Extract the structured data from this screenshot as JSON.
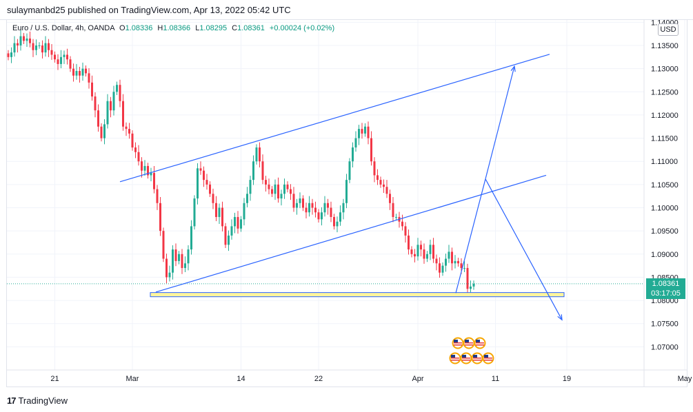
{
  "header": {
    "publish_text": "sulaymanbd25 published on TradingView.com, Apr 13, 2022 05:42 UTC"
  },
  "legend": {
    "symbol": "Euro / U.S. Dollar, 4h, OANDA",
    "o_label": "O",
    "o_value": "1.08336",
    "h_label": "H",
    "h_value": "1.08366",
    "l_label": "L",
    "l_value": "1.08295",
    "c_label": "C",
    "c_value": "1.08361",
    "change": "+0.00024 (+0.02%)"
  },
  "currency_badge": "USD",
  "price_tag": {
    "price": "1.08361",
    "countdown": "03:17:05"
  },
  "footer": {
    "logo_text": "TradingView"
  },
  "colors": {
    "up": "#22ab94",
    "down": "#f23645",
    "trendline": "#2962ff",
    "zone_fill": "#fff59d",
    "zone_stroke": "#2962ff"
  },
  "chart_data": {
    "type": "candlestick",
    "ylim": [
      1.065,
      1.1405
    ],
    "y_ticks": [
      "1.07000",
      "1.07500",
      "1.08000",
      "1.08500",
      "1.09000",
      "1.09500",
      "1.10000",
      "1.10500",
      "1.11000",
      "1.11500",
      "1.12000",
      "1.12500",
      "1.13000",
      "1.13500",
      "1.14000"
    ],
    "y_tick_values": [
      1.07,
      1.075,
      1.08,
      1.085,
      1.09,
      1.095,
      1.1,
      1.105,
      1.11,
      1.115,
      1.12,
      1.125,
      1.13,
      1.135,
      1.14
    ],
    "x_ticks": [
      "21",
      "Mar",
      "14",
      "22",
      "Apr",
      "11",
      "19",
      "May"
    ],
    "x_tick_bar_index": [
      15,
      40,
      75,
      100,
      132,
      157,
      180,
      218
    ],
    "close_path": [
      1.1325,
      1.1335,
      1.1355,
      1.135,
      1.137,
      1.136,
      1.1365,
      1.1355,
      1.134,
      1.135,
      1.135,
      1.1335,
      1.1355,
      1.134,
      1.133,
      1.132,
      1.131,
      1.1325,
      1.133,
      1.132,
      1.13,
      1.1285,
      1.1295,
      1.1285,
      1.13,
      1.129,
      1.127,
      1.124,
      1.121,
      1.1175,
      1.115,
      1.118,
      1.123,
      1.121,
      1.125,
      1.1265,
      1.123,
      1.1175,
      1.117,
      1.116,
      1.113,
      1.112,
      1.11,
      1.108,
      1.109,
      1.107,
      1.1075,
      1.104,
      1.101,
      1.095,
      1.089,
      1.085,
      1.086,
      1.091,
      1.0885,
      1.09,
      1.087,
      1.088,
      1.091,
      1.096,
      1.102,
      1.1085,
      1.108,
      1.106,
      1.105,
      1.103,
      1.101,
      1.098,
      1.1,
      1.096,
      1.092,
      1.094,
      1.096,
      1.098,
      1.0955,
      1.0975,
      1.101,
      1.103,
      1.106,
      1.11,
      1.113,
      1.11,
      1.106,
      1.105,
      1.104,
      1.103,
      1.105,
      1.102,
      1.103,
      1.105,
      1.104,
      1.103,
      1.1,
      1.101,
      1.102,
      1.1,
      1.099,
      1.101,
      1.1,
      1.099,
      1.0975,
      1.099,
      1.101,
      1.1,
      1.098,
      1.096,
      1.097,
      1.099,
      1.101,
      1.106,
      1.11,
      1.113,
      1.115,
      1.117,
      1.116,
      1.1175,
      1.115,
      1.11,
      1.107,
      1.106,
      1.105,
      1.1045,
      1.103,
      1.101,
      1.098,
      1.098,
      1.097,
      1.096,
      1.094,
      1.091,
      1.09,
      1.0895,
      1.092,
      1.091,
      1.089,
      1.09,
      1.092,
      1.089,
      1.088,
      1.086,
      1.0875,
      1.089,
      1.0905,
      1.088,
      1.0885,
      1.088,
      1.087,
      1.087,
      1.0825,
      1.083,
      1.0836
    ]
  },
  "drawings": {
    "upper_channel": {
      "x": [
        174,
        797
      ],
      "y": [
        1.1056,
        1.1331
      ]
    },
    "lower_channel": {
      "x": [
        226,
        792
      ],
      "y": [
        1.0818,
        1.107
      ]
    },
    "zone": {
      "x": [
        218,
        818
      ],
      "y": [
        1.0808,
        1.0817
      ]
    },
    "arrow_up_1": {
      "x": [
        661,
        704
      ],
      "y": [
        1.0816,
        1.1062
      ]
    },
    "arrow_up_2": {
      "x": [
        704,
        746
      ],
      "y": [
        1.1062,
        1.1305
      ]
    },
    "arrow_down": {
      "x": [
        704,
        815
      ],
      "y": [
        1.1062,
        1.0758
      ]
    }
  }
}
